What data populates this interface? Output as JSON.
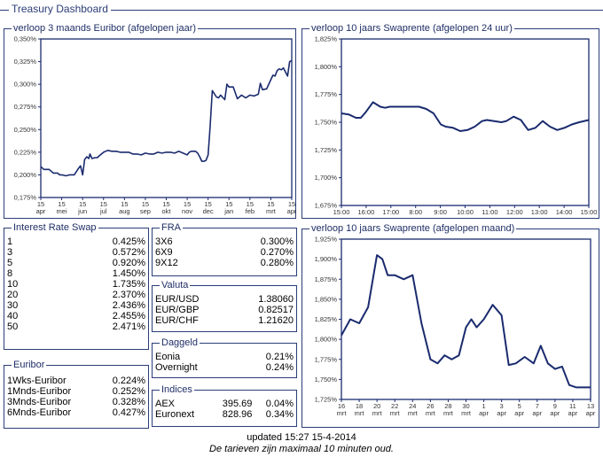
{
  "title": "Treasury Dashboard",
  "charts": {
    "euribor3m": {
      "title": "verloop 3 maands Euribor (afgelopen jaar)"
    },
    "swap24h": {
      "title": "verloop 10 jaars Swaprente (afgelopen 24 uur)"
    },
    "swapmonth": {
      "title": "verloop 10 jaars Swaprente (afgelopen maand)"
    }
  },
  "chart_data": [
    {
      "type": "line",
      "title": "verloop 3 maands Euribor (afgelopen jaar)",
      "y_ticks": [
        "0,350%",
        "0,325%",
        "0,300%",
        "0,275%",
        "0,250%",
        "0,225%",
        "0,200%",
        "0,175%"
      ],
      "ylim": [
        0.175,
        0.35
      ],
      "x_ticks": [
        [
          "15",
          "apr"
        ],
        [
          "15",
          "mei"
        ],
        [
          "15",
          "jun"
        ],
        [
          "15",
          "jul"
        ],
        [
          "15",
          "aug"
        ],
        [
          "15",
          "sep"
        ],
        [
          "15",
          "okt"
        ],
        [
          "15",
          "nov"
        ],
        [
          "15",
          "dec"
        ],
        [
          "15",
          "jan"
        ],
        [
          "15",
          "feb"
        ],
        [
          "15",
          "mrt"
        ],
        [
          "15",
          "apr"
        ]
      ],
      "x": [
        0,
        0.15,
        0.3,
        0.4,
        0.6,
        0.8,
        0.9,
        1.0,
        1.2,
        1.4,
        1.6,
        1.8,
        1.9,
        2.0,
        2.1,
        2.2,
        2.3,
        2.35,
        2.45,
        2.6,
        2.7,
        2.8,
        3.0,
        3.2,
        3.4,
        3.6,
        3.8,
        4.0,
        4.2,
        4.4,
        4.6,
        4.8,
        5.0,
        5.2,
        5.4,
        5.6,
        5.8,
        6.0,
        6.2,
        6.4,
        6.6,
        6.8,
        7.0,
        7.1,
        7.2,
        7.3,
        7.4,
        7.5,
        7.6,
        7.7,
        7.8,
        7.9,
        8.0,
        8.1,
        8.2,
        8.4,
        8.5,
        8.6,
        8.8,
        8.9,
        9.0,
        9.2,
        9.4,
        9.6,
        9.8,
        10.0,
        10.2,
        10.4,
        10.5,
        10.6,
        10.8,
        11.0,
        11.1,
        11.2,
        11.3,
        11.4,
        11.5,
        11.6,
        11.8,
        11.9,
        12.0
      ],
      "values": [
        0.209,
        0.206,
        0.206,
        0.206,
        0.202,
        0.202,
        0.2,
        0.2,
        0.199,
        0.2,
        0.2,
        0.207,
        0.21,
        0.2,
        0.217,
        0.22,
        0.218,
        0.223,
        0.218,
        0.219,
        0.219,
        0.221,
        0.225,
        0.227,
        0.226,
        0.226,
        0.225,
        0.225,
        0.225,
        0.223,
        0.223,
        0.222,
        0.224,
        0.223,
        0.223,
        0.225,
        0.224,
        0.225,
        0.225,
        0.224,
        0.226,
        0.224,
        0.222,
        0.225,
        0.226,
        0.226,
        0.226,
        0.224,
        0.22,
        0.215,
        0.215,
        0.216,
        0.222,
        0.254,
        0.293,
        0.286,
        0.285,
        0.288,
        0.283,
        0.3,
        0.297,
        0.297,
        0.284,
        0.288,
        0.285,
        0.288,
        0.287,
        0.289,
        0.301,
        0.294,
        0.295,
        0.305,
        0.31,
        0.309,
        0.315,
        0.317,
        0.316,
        0.318,
        0.309,
        0.325,
        0.326
      ]
    },
    {
      "type": "line",
      "title": "verloop 10 jaars Swaprente (afgelopen 24 uur)",
      "y_ticks": [
        "1,825%",
        "1,800%",
        "1,775%",
        "1,750%",
        "1,725%",
        "1,700%",
        "1,675%"
      ],
      "ylim": [
        1.675,
        1.825
      ],
      "x_ticks": [
        "15:00",
        "16:00",
        "17:00",
        "8:00",
        "9:00",
        "10:00",
        "11:00",
        "12:00",
        "13:00",
        "14:00",
        "15:00"
      ],
      "x": [
        0,
        0.3,
        0.6,
        0.8,
        1.0,
        1.3,
        1.6,
        1.8,
        2.0,
        2.4,
        2.8,
        3.2,
        3.5,
        3.8,
        4.1,
        4.3,
        4.6,
        4.9,
        5.2,
        5.5,
        5.8,
        6.0,
        6.3,
        6.6,
        6.8,
        7.1,
        7.4,
        7.7,
        8.0,
        8.3,
        8.6,
        8.9,
        9.2,
        9.5,
        9.8,
        10.2
      ],
      "values": [
        1.758,
        1.757,
        1.754,
        1.754,
        1.759,
        1.768,
        1.764,
        1.763,
        1.764,
        1.764,
        1.764,
        1.764,
        1.762,
        1.758,
        1.748,
        1.746,
        1.745,
        1.742,
        1.743,
        1.746,
        1.751,
        1.752,
        1.751,
        1.75,
        1.751,
        1.755,
        1.752,
        1.743,
        1.745,
        1.751,
        1.746,
        1.743,
        1.745,
        1.748,
        1.75,
        1.752
      ]
    },
    {
      "type": "line",
      "title": "verloop 10 jaars Swaprente (afgelopen maand)",
      "y_ticks": [
        "1,925%",
        "1,900%",
        "1,875%",
        "1,850%",
        "1,825%",
        "1,800%",
        "1,775%",
        "1,750%",
        "1,725%"
      ],
      "ylim": [
        1.725,
        1.925
      ],
      "x_ticks": [
        [
          "16",
          "mrt"
        ],
        [
          "18",
          "mrt"
        ],
        [
          "20",
          "mrt"
        ],
        [
          "22",
          "mrt"
        ],
        [
          "24",
          "mrt"
        ],
        [
          "26",
          "mrt"
        ],
        [
          "28",
          "mrt"
        ],
        [
          "30",
          "mrt"
        ],
        [
          "1",
          "apr"
        ],
        [
          "3",
          "apr"
        ],
        [
          "5",
          "apr"
        ],
        [
          "7",
          "apr"
        ],
        [
          "9",
          "apr"
        ],
        [
          "11",
          "apr"
        ],
        [
          "13",
          "apr"
        ]
      ],
      "x": [
        0,
        0.5,
        1.0,
        1.5,
        2.0,
        2.3,
        2.6,
        3.0,
        3.5,
        4.0,
        4.5,
        5.0,
        5.4,
        5.8,
        6.2,
        6.6,
        7.0,
        7.3,
        7.6,
        8.0,
        8.5,
        9.0,
        9.4,
        9.8,
        10.3,
        10.8,
        11.2,
        11.6,
        12.0,
        12.4,
        12.8,
        13.2,
        13.6,
        14.0
      ],
      "values": [
        1.805,
        1.825,
        1.82,
        1.84,
        1.905,
        1.9,
        1.88,
        1.88,
        1.875,
        1.88,
        1.82,
        1.775,
        1.77,
        1.78,
        1.775,
        1.78,
        1.815,
        1.825,
        1.815,
        1.825,
        1.843,
        1.83,
        1.768,
        1.77,
        1.778,
        1.77,
        1.792,
        1.77,
        1.763,
        1.766,
        1.743,
        1.74,
        1.74,
        1.74
      ]
    }
  ],
  "interest_rate_swap": {
    "legend": "Interest Rate Swap",
    "rows": [
      {
        "label": "1",
        "value": "0.425%"
      },
      {
        "label": "3",
        "value": "0.572%"
      },
      {
        "label": "5",
        "value": "0.920%"
      },
      {
        "label": "8",
        "value": "1.450%"
      },
      {
        "label": "10",
        "value": "1.735%"
      },
      {
        "label": "20",
        "value": "2.370%"
      },
      {
        "label": "30",
        "value": "2.436%"
      },
      {
        "label": "40",
        "value": "2.455%"
      },
      {
        "label": "50",
        "value": "2.471%"
      }
    ]
  },
  "euribor": {
    "legend": "Euribor",
    "rows": [
      {
        "label": "1Wks-Euribor",
        "value": "0.224%"
      },
      {
        "label": "1Mnds-Euribor",
        "value": "0.252%"
      },
      {
        "label": "3Mnds-Euribor",
        "value": "0.328%"
      },
      {
        "label": "6Mnds-Euribor",
        "value": "0.427%"
      }
    ]
  },
  "fra": {
    "legend": "FRA",
    "rows": [
      {
        "label": "3X6",
        "value": "0.300%"
      },
      {
        "label": "6X9",
        "value": "0.270%"
      },
      {
        "label": "9X12",
        "value": "0.280%"
      }
    ]
  },
  "valuta": {
    "legend": "Valuta",
    "rows": [
      {
        "label": "EUR/USD",
        "value": "1.38060"
      },
      {
        "label": "EUR/GBP",
        "value": "0.82517"
      },
      {
        "label": "EUR/CHF",
        "value": "1.21620"
      }
    ]
  },
  "daggeld": {
    "legend": "Daggeld",
    "rows": [
      {
        "label": "Eonia",
        "value": "0.21%"
      },
      {
        "label": "Overnight",
        "value": "0.24%"
      }
    ]
  },
  "indices": {
    "legend": "Indices",
    "rows": [
      {
        "label": "AEX",
        "value": "395.69",
        "change": "0.04%"
      },
      {
        "label": "Euronext",
        "value": "828.96",
        "change": "0.34%"
      }
    ]
  },
  "footer": {
    "updated": "updated 15:27 15-4-2014",
    "note": "De tarieven zijn maximaal 10 minuten oud."
  },
  "colors": {
    "line": "#1a2b6e",
    "frame": "#2b3d78",
    "plot_border": "#1a2b6e",
    "tick_text": "#333333"
  }
}
